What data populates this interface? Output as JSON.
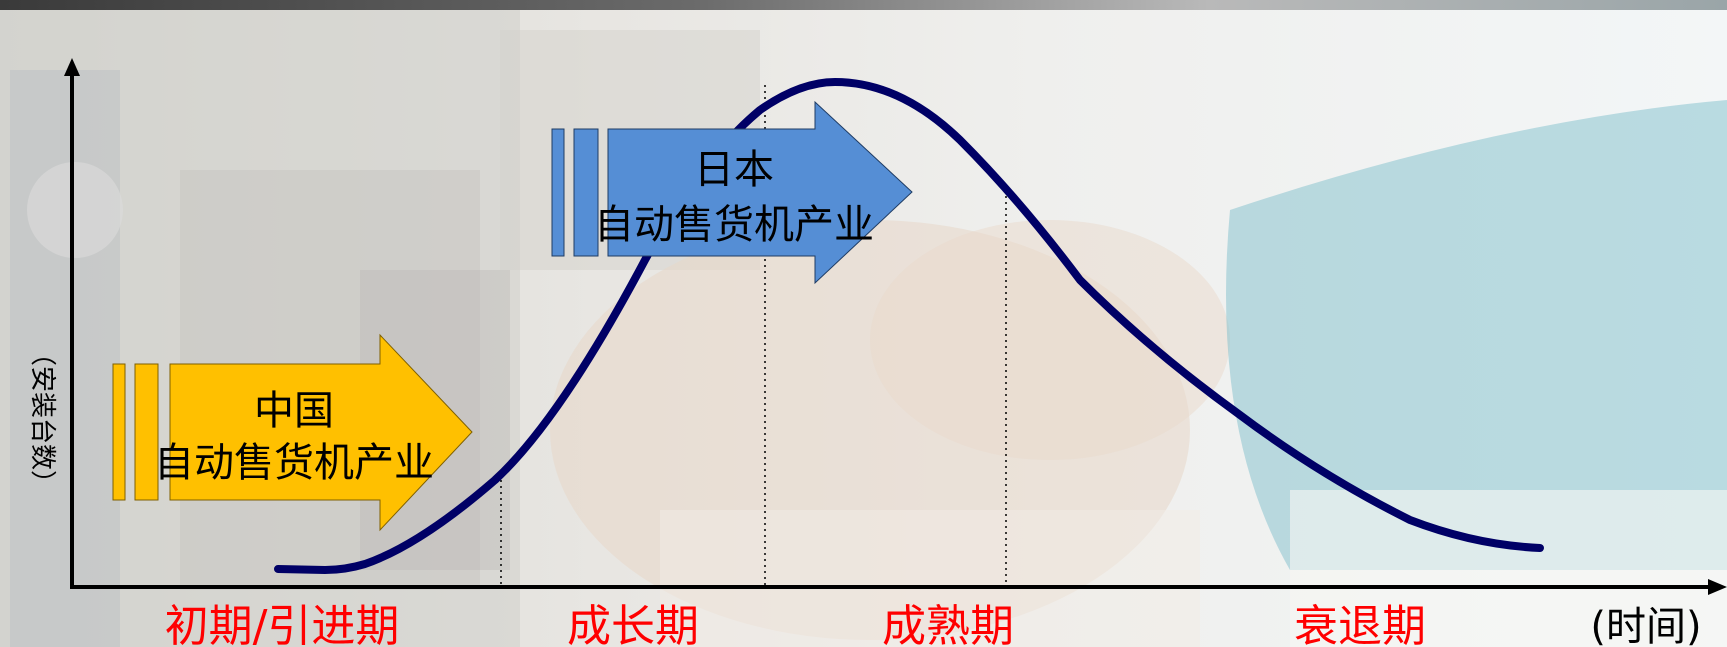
{
  "colors": {
    "curve": "#000066",
    "china_arrow": "#ffc000",
    "japan_arrow": "#558ed5",
    "stage_label": "#ff0000",
    "axis": "#000000"
  },
  "y_axis_label": "（安装台数）",
  "x_axis_unit": "(时间)",
  "stages": [
    {
      "label": "初期/引进期"
    },
    {
      "label": "成长期"
    },
    {
      "label": "成熟期"
    },
    {
      "label": "衰退期"
    }
  ],
  "arrows": {
    "china": {
      "line1": "中国",
      "line2": "自动售货机产业",
      "stage": "初期/引进期"
    },
    "japan": {
      "line1": "日本",
      "line2": "自动售货机产业",
      "stage": "成熟期"
    }
  },
  "icons": {
    "y_axis_arrow": "arrow-up-icon",
    "x_axis_arrow": "arrow-right-icon"
  }
}
